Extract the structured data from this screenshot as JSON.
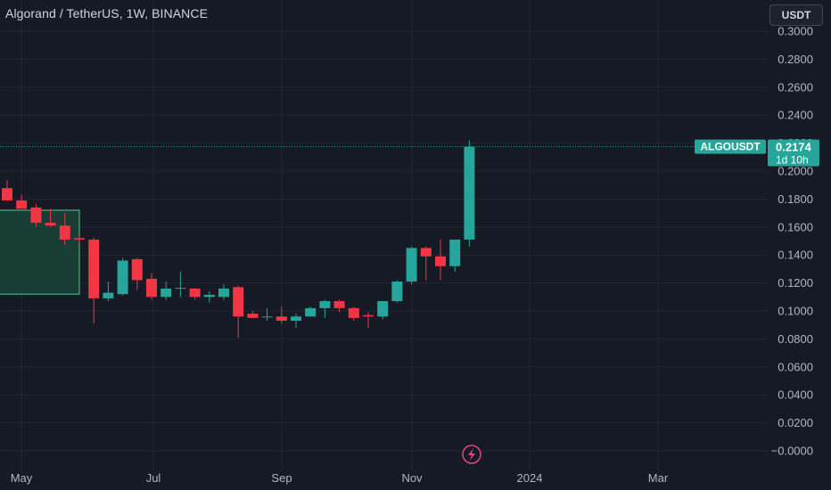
{
  "header": {
    "title": "Algorand / TetherUS, 1W, BINANCE",
    "currency_button": "USDT"
  },
  "price_tag": {
    "symbol": "ALGOUSDT",
    "price": "0.2174",
    "countdown": "1d 10h"
  },
  "colors": {
    "background": "#161a25",
    "up": "#26a69a",
    "down": "#f23645",
    "grid": "#232633",
    "zone_fill": "#1a4a3a",
    "zone_border": "#4caf7a"
  },
  "icons": {
    "event": "lightning-icon"
  },
  "chart_data": {
    "type": "candlestick",
    "title": "Algorand / TetherUS, 1W, BINANCE",
    "ylim": [
      -0.0082,
      0.3004
    ],
    "y_ticks": [
      "0.3000",
      "0.2800",
      "0.2600",
      "0.2400",
      "0.2200",
      "0.2000",
      "0.1800",
      "0.1600",
      "0.1400",
      "0.1200",
      "0.1000",
      "0.0800",
      "0.0600",
      "0.0400",
      "0.0200",
      "−0.0000"
    ],
    "x_ticks": [
      "May",
      "Jul",
      "Sep",
      "Nov",
      "2024",
      "Mar"
    ],
    "last_price": 0.2174,
    "candles": [
      {
        "o": 0.1878,
        "h": 0.1935,
        "l": 0.179,
        "c": 0.179
      },
      {
        "o": 0.179,
        "h": 0.183,
        "l": 0.176,
        "c": 0.173
      },
      {
        "o": 0.174,
        "h": 0.1765,
        "l": 0.16,
        "c": 0.163
      },
      {
        "o": 0.163,
        "h": 0.173,
        "l": 0.16,
        "c": 0.161
      },
      {
        "o": 0.161,
        "h": 0.17,
        "l": 0.147,
        "c": 0.151
      },
      {
        "o": 0.152,
        "h": 0.154,
        "l": 0.148,
        "c": 0.151
      },
      {
        "o": 0.151,
        "h": 0.1525,
        "l": 0.091,
        "c": 0.109
      },
      {
        "o": 0.109,
        "h": 0.121,
        "l": 0.107,
        "c": 0.113
      },
      {
        "o": 0.112,
        "h": 0.138,
        "l": 0.111,
        "c": 0.136
      },
      {
        "o": 0.137,
        "h": 0.138,
        "l": 0.115,
        "c": 0.122
      },
      {
        "o": 0.123,
        "h": 0.127,
        "l": 0.108,
        "c": 0.11
      },
      {
        "o": 0.11,
        "h": 0.121,
        "l": 0.108,
        "c": 0.116
      },
      {
        "o": 0.116,
        "h": 0.128,
        "l": 0.11,
        "c": 0.1165
      },
      {
        "o": 0.116,
        "h": 0.1165,
        "l": 0.108,
        "c": 0.11
      },
      {
        "o": 0.11,
        "h": 0.114,
        "l": 0.106,
        "c": 0.1115
      },
      {
        "o": 0.11,
        "h": 0.119,
        "l": 0.108,
        "c": 0.116
      },
      {
        "o": 0.117,
        "h": 0.118,
        "l": 0.081,
        "c": 0.096
      },
      {
        "o": 0.098,
        "h": 0.1,
        "l": 0.095,
        "c": 0.095
      },
      {
        "o": 0.096,
        "h": 0.102,
        "l": 0.093,
        "c": 0.096
      },
      {
        "o": 0.096,
        "h": 0.103,
        "l": 0.091,
        "c": 0.093
      },
      {
        "o": 0.093,
        "h": 0.098,
        "l": 0.088,
        "c": 0.096
      },
      {
        "o": 0.096,
        "h": 0.103,
        "l": 0.096,
        "c": 0.102
      },
      {
        "o": 0.102,
        "h": 0.108,
        "l": 0.095,
        "c": 0.107
      },
      {
        "o": 0.107,
        "h": 0.108,
        "l": 0.099,
        "c": 0.102
      },
      {
        "o": 0.102,
        "h": 0.103,
        "l": 0.093,
        "c": 0.095
      },
      {
        "o": 0.097,
        "h": 0.099,
        "l": 0.088,
        "c": 0.096
      },
      {
        "o": 0.096,
        "h": 0.107,
        "l": 0.094,
        "c": 0.107
      },
      {
        "o": 0.107,
        "h": 0.122,
        "l": 0.106,
        "c": 0.121
      },
      {
        "o": 0.121,
        "h": 0.146,
        "l": 0.119,
        "c": 0.145
      },
      {
        "o": 0.145,
        "h": 0.146,
        "l": 0.122,
        "c": 0.139
      },
      {
        "o": 0.139,
        "h": 0.151,
        "l": 0.122,
        "c": 0.132
      },
      {
        "o": 0.132,
        "h": 0.151,
        "l": 0.128,
        "c": 0.151
      },
      {
        "o": 0.151,
        "h": 0.222,
        "l": 0.146,
        "c": 0.2174
      }
    ]
  }
}
